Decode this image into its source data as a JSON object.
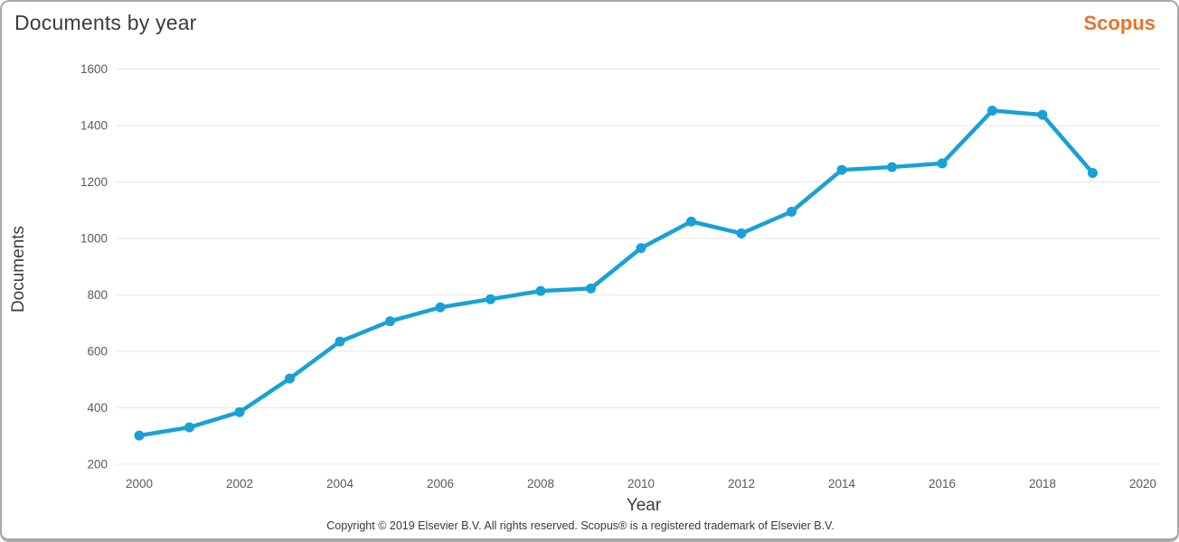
{
  "header": {
    "title": "Documents by year",
    "logo_text": "Scopus"
  },
  "chart_data": {
    "type": "line",
    "title": "Documents by year",
    "xlabel": "Year",
    "ylabel": "Documents",
    "x": [
      2000,
      2001,
      2002,
      2003,
      2004,
      2005,
      2006,
      2007,
      2008,
      2009,
      2010,
      2011,
      2012,
      2013,
      2014,
      2015,
      2016,
      2017,
      2018,
      2019
    ],
    "values": [
      302,
      331,
      385,
      504,
      635,
      707,
      756,
      785,
      814,
      823,
      966,
      1060,
      1018,
      1095,
      1243,
      1253,
      1266,
      1453,
      1438,
      1232
    ],
    "series_name": "Documents",
    "xticks": [
      2000,
      2002,
      2004,
      2006,
      2008,
      2010,
      2012,
      2014,
      2016,
      2018,
      2020
    ],
    "yticks": [
      200,
      400,
      600,
      800,
      1000,
      1200,
      1400,
      1600
    ],
    "xlim": [
      1999.5,
      2020.4
    ],
    "ylim": [
      200,
      1600
    ],
    "grid": "horizontal-only",
    "legend": "none",
    "marker": "circle"
  },
  "footer": {
    "copyright": "Copyright © 2019 Elsevier B.V. All rights reserved. Scopus® is a registered trademark of Elsevier B.V."
  },
  "colors": {
    "line_blue": "#18a1d6",
    "accent_orange": "#e8732a",
    "grid_gray": "#e7e7e7",
    "tick_text": "#5a5a5a",
    "title_text": "#3b3b3b",
    "border_gray": "#a9a9a9"
  }
}
